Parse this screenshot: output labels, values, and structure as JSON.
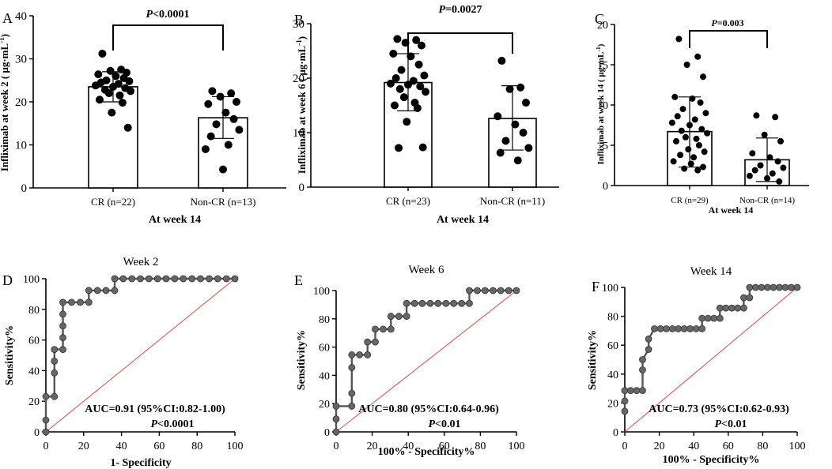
{
  "chart_data": [
    {
      "type": "scatter",
      "panel_letter": "A",
      "pvalue_italic": "P",
      "pvalue_rest": "<0.0001",
      "ylabel_main": "Infliximab at week 2",
      "ylabel_unit": "( μg·mL",
      "ylabel_sup": "-1",
      "ylabel_close": ")",
      "xlabel": "At week 14",
      "categories": [
        "CR (n=22)",
        "Non-CR (n=13)"
      ],
      "ylim": [
        0,
        40
      ],
      "yticks": [
        "0",
        "10",
        "20",
        "30",
        "40"
      ],
      "bars": [
        {
          "mean": 23.5,
          "sd_low": 20.0,
          "sd_high": 27.0,
          "points": [
            31.2,
            27.5,
            27.2,
            26.8,
            26.4,
            26.0,
            25.5,
            25.0,
            24.8,
            24.5,
            24.2,
            23.8,
            23.5,
            23.2,
            22.8,
            22.5,
            22.0,
            21.5,
            20.5,
            19.8,
            17.5,
            14.0
          ]
        },
        {
          "mean": 16.3,
          "sd_low": 11.5,
          "sd_high": 21.2,
          "points": [
            22.5,
            22.0,
            21.2,
            20.0,
            19.5,
            17.5,
            16.0,
            14.8,
            13.5,
            12.0,
            10.0,
            9.0,
            4.3
          ]
        }
      ]
    },
    {
      "type": "scatter",
      "panel_letter": "B",
      "pvalue_italic": "P",
      "pvalue_rest": "=0.0027",
      "ylabel_main": "Infliximab at week 6",
      "ylabel_unit": "( μg·mL",
      "ylabel_sup": "-1",
      "ylabel_close": ")",
      "xlabel": "At week 14",
      "categories": [
        "CR (n=23)",
        "Non-CR (n=11)"
      ],
      "ylim": [
        0,
        30
      ],
      "yticks": [
        "0",
        "10",
        "20",
        "30"
      ],
      "bars": [
        {
          "mean": 19.2,
          "sd_low": 14.0,
          "sd_high": 24.5,
          "points": [
            27.2,
            27.0,
            26.5,
            26.0,
            24.5,
            24.0,
            22.5,
            21.5,
            20.5,
            20.0,
            19.5,
            19.0,
            18.8,
            18.5,
            18.0,
            17.5,
            16.5,
            15.5,
            15.0,
            14.5,
            12.0,
            7.3,
            7.2
          ]
        },
        {
          "mean": 12.6,
          "sd_low": 6.8,
          "sd_high": 18.6,
          "points": [
            23.2,
            18.3,
            18.0,
            15.5,
            13.0,
            11.5,
            10.0,
            8.5,
            7.2,
            6.3,
            4.9
          ]
        }
      ]
    },
    {
      "type": "scatter",
      "panel_letter": "C",
      "pvalue_italic": "P",
      "pvalue_rest": "=0.003",
      "ylabel_main": "Infliximab at week 14",
      "ylabel_unit": "( μg·mL",
      "ylabel_sup": "-1",
      "ylabel_close": ")",
      "xlabel": "At week 14",
      "categories": [
        "CR (n=29)",
        "Non-CR (n=14)"
      ],
      "ylim": [
        0,
        20
      ],
      "yticks": [
        "0",
        "5",
        "10",
        "15",
        "20"
      ],
      "bars": [
        {
          "mean": 6.7,
          "sd_low": 2.3,
          "sd_high": 11.0,
          "points": [
            18.2,
            16.0,
            15.0,
            13.5,
            11.0,
            10.8,
            10.3,
            9.5,
            9.0,
            8.6,
            8.2,
            7.8,
            7.5,
            7.0,
            6.8,
            6.5,
            6.0,
            5.8,
            5.5,
            5.0,
            4.5,
            4.2,
            3.8,
            3.5,
            3.0,
            2.7,
            2.3,
            2.1,
            1.9
          ]
        },
        {
          "mean": 3.2,
          "sd_low": 0.5,
          "sd_high": 5.9,
          "points": [
            8.7,
            8.5,
            6.3,
            5.5,
            4.0,
            3.5,
            3.0,
            2.5,
            2.2,
            1.9,
            1.5,
            1.2,
            0.9,
            0.5
          ]
        }
      ]
    },
    {
      "type": "line",
      "panel_letter": "D",
      "title": "Week  2",
      "xlabel": "1- Specificity",
      "ylabel": "Sensitivity%",
      "auc": "AUC=0.91 (95%CI:0.82-1.00)",
      "pvalue_italic": "P",
      "pvalue_rest": "<0.0001",
      "xlim": [
        0,
        100
      ],
      "ylim": [
        0,
        100
      ],
      "xticks": [
        "0",
        "20",
        "40",
        "60",
        "80",
        "100"
      ],
      "yticks": [
        "0",
        "20",
        "40",
        "60",
        "80",
        "100"
      ],
      "x": [
        0,
        0,
        0,
        4.5,
        4.5,
        4.5,
        4.5,
        9,
        9,
        9,
        9,
        9,
        13.6,
        18.2,
        22.7,
        22.7,
        27.3,
        31.8,
        36.4,
        36.4,
        40.9,
        45.5,
        50,
        54.5,
        59.1,
        63.6,
        68.2,
        72.7,
        77.3,
        81.8,
        86.4,
        90.9,
        95.5,
        100
      ],
      "y": [
        0,
        7.7,
        23.1,
        23.1,
        38.5,
        46.2,
        53.8,
        53.8,
        61.5,
        69.2,
        76.9,
        84.6,
        84.6,
        84.6,
        84.6,
        92.3,
        92.3,
        92.3,
        92.3,
        100,
        100,
        100,
        100,
        100,
        100,
        100,
        100,
        100,
        100,
        100,
        100,
        100,
        100,
        100
      ]
    },
    {
      "type": "line",
      "panel_letter": "E",
      "title": "Week  6",
      "xlabel": "100% - Specificity%",
      "ylabel": "Sensitivity%",
      "auc": "AUC=0.80 (95%CI:0.64-0.96)",
      "pvalue_italic": "P",
      "pvalue_rest": "<0.01",
      "xlim": [
        0,
        100
      ],
      "ylim": [
        0,
        100
      ],
      "xticks": [
        "0",
        "20",
        "40",
        "60",
        "80",
        "100"
      ],
      "yticks": [
        "0",
        "20",
        "40",
        "60",
        "80",
        "100"
      ],
      "x": [
        0,
        0,
        0,
        8.7,
        8.7,
        8.7,
        8.7,
        13,
        17.4,
        17.4,
        21.7,
        21.7,
        26.1,
        30.4,
        30.4,
        34.8,
        39.1,
        39.1,
        43.5,
        47.8,
        52.2,
        56.5,
        60.9,
        65.2,
        69.6,
        73.9,
        73.9,
        78.3,
        82.6,
        87,
        91.3,
        95.7,
        100
      ],
      "y": [
        0,
        9.1,
        18.2,
        18.2,
        27.3,
        45.5,
        54.5,
        54.5,
        54.5,
        63.6,
        63.6,
        72.7,
        72.7,
        72.7,
        81.8,
        81.8,
        81.8,
        90.9,
        90.9,
        90.9,
        90.9,
        90.9,
        90.9,
        90.9,
        90.9,
        90.9,
        100,
        100,
        100,
        100,
        100,
        100,
        100
      ]
    },
    {
      "type": "line",
      "panel_letter": "F",
      "title": "Week  14",
      "xlabel": "100% - Specificity%",
      "ylabel": "Sensitivity%",
      "auc": "AUC=0.73 (95%CI:0.62-0.93)",
      "pvalue_italic": "P",
      "pvalue_rest": "<0.01",
      "xlim": [
        0,
        100
      ],
      "ylim": [
        0,
        100
      ],
      "xticks": [
        "0",
        "20",
        "40",
        "60",
        "80",
        "100"
      ],
      "yticks": [
        "0",
        "20",
        "40",
        "60",
        "80",
        "100"
      ],
      "x": [
        0,
        0,
        0,
        3.4,
        6.9,
        10.3,
        10.3,
        10.3,
        13.8,
        13.8,
        17.2,
        20.7,
        24.1,
        27.6,
        31,
        34.5,
        37.9,
        41.4,
        44.8,
        44.8,
        48.3,
        51.7,
        55.2,
        55.2,
        58.6,
        62.1,
        65.5,
        69,
        69,
        72.4,
        72.4,
        75.9,
        79.3,
        82.8,
        86.2,
        89.7,
        93.1,
        96.6,
        100
      ],
      "y": [
        14.3,
        21.4,
        28.6,
        28.6,
        28.6,
        28.6,
        42.9,
        50,
        57.1,
        64.3,
        71.4,
        71.4,
        71.4,
        71.4,
        71.4,
        71.4,
        71.4,
        71.4,
        71.4,
        78.6,
        78.6,
        78.6,
        78.6,
        85.7,
        85.7,
        85.7,
        85.7,
        85.7,
        92.9,
        92.9,
        100,
        100,
        100,
        100,
        100,
        100,
        100,
        100,
        100
      ]
    }
  ]
}
